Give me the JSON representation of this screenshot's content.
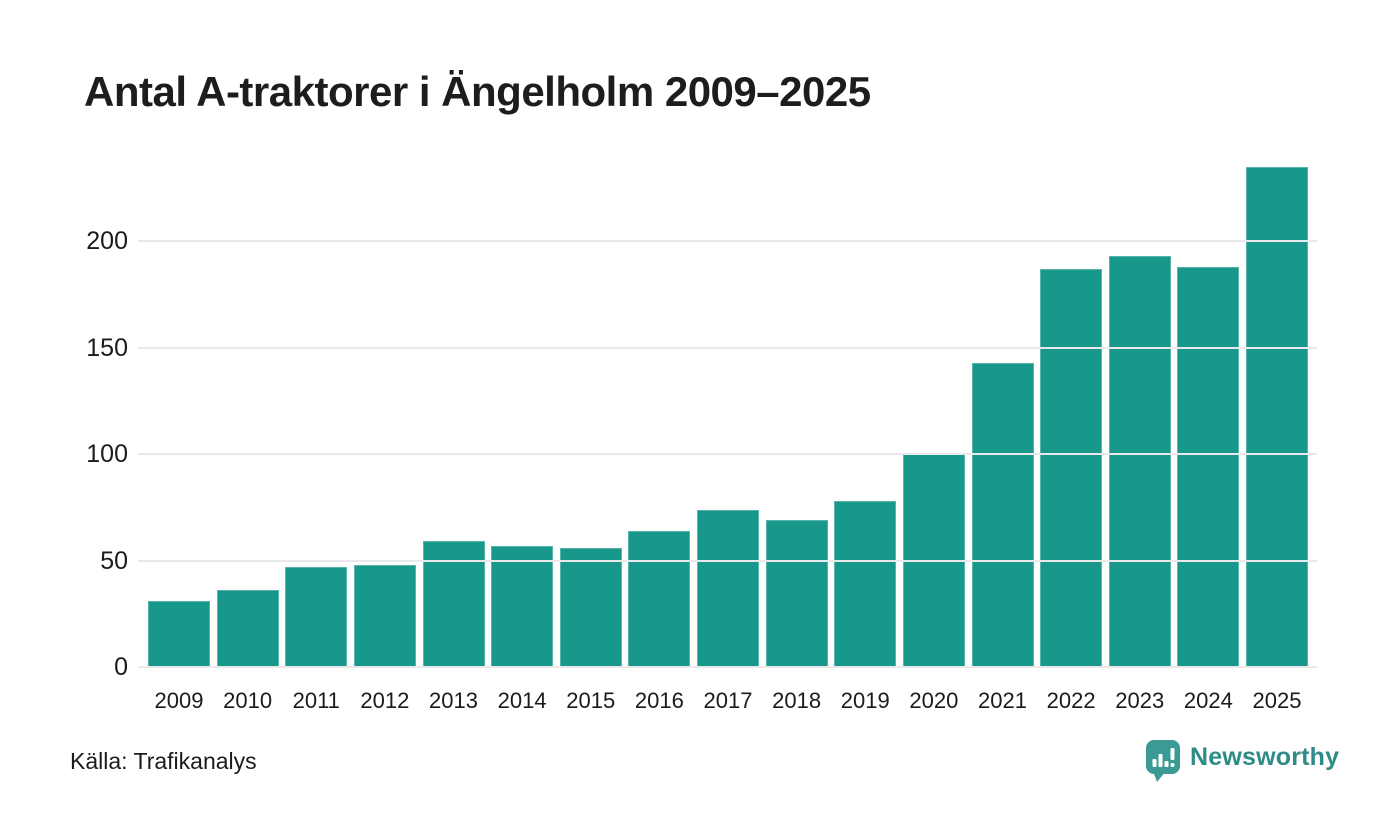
{
  "chart_data": {
    "type": "bar",
    "title": "Antal A-traktorer i Ängelholm 2009–2025",
    "categories": [
      "2009",
      "2010",
      "2011",
      "2012",
      "2013",
      "2014",
      "2015",
      "2016",
      "2017",
      "2018",
      "2019",
      "2020",
      "2021",
      "2022",
      "2023",
      "2024",
      "2025"
    ],
    "values": [
      31,
      36,
      47,
      48,
      59,
      57,
      56,
      64,
      74,
      69,
      78,
      100,
      143,
      187,
      193,
      188,
      235
    ],
    "xlabel": "",
    "ylabel": "",
    "yticks": [
      0,
      50,
      100,
      150,
      200
    ],
    "ylim": [
      0,
      243
    ],
    "grid": true,
    "legend": "none",
    "bar_color": "#17988a",
    "gridline_color": "#e9e9ec"
  },
  "footer": {
    "source": "Källa: Trafikanalys",
    "brand": "Newsworthy",
    "brand_color": "#2e8b87",
    "brand_icon_color": "#3b9a93"
  }
}
